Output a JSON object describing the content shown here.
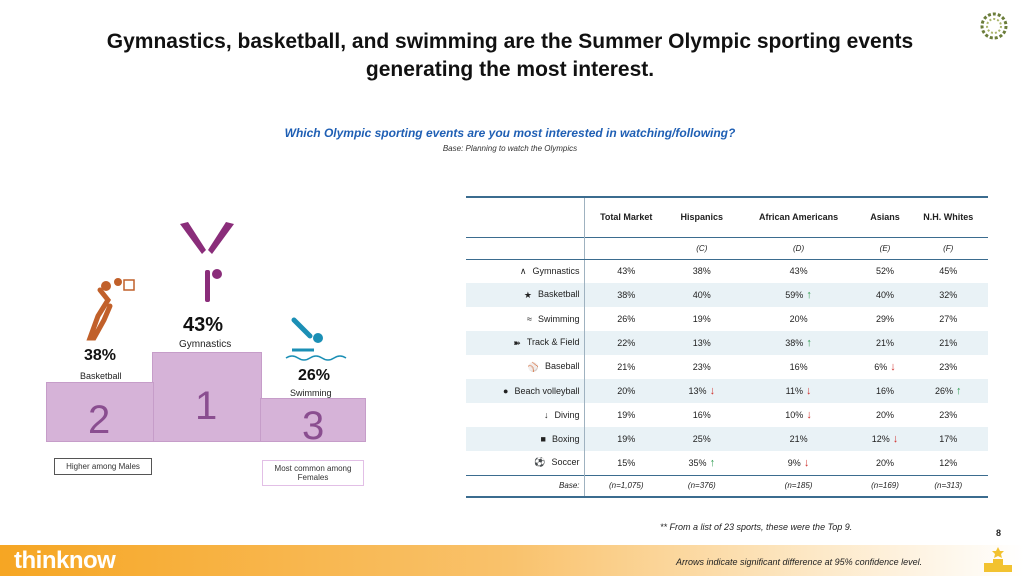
{
  "title": "Gymnastics, basketball, and swimming are the Summer Olympic sporting events generating the most interest.",
  "question": "Which Olympic sporting events are you most interested in watching/following?",
  "base_note": "Base: Planning to watch the Olympics",
  "podium": {
    "first": {
      "place": "1",
      "pct": "43%",
      "label": "Gymnastics"
    },
    "second": {
      "place": "2",
      "pct": "38%",
      "label": "Basketball"
    },
    "third": {
      "place": "3",
      "pct": "26%",
      "label": "Swimming"
    },
    "note_males": "Higher among Males",
    "note_females": "Most common among Females"
  },
  "chart_data": {
    "type": "table",
    "title": "Which Olympic sporting events are you most interested in watching/following?",
    "columns": [
      "Total Market",
      "Hispanics",
      "African Americans",
      "Asians",
      "N.H. Whites"
    ],
    "column_letters": [
      "",
      "(C)",
      "(D)",
      "(E)",
      "(F)"
    ],
    "rows": [
      {
        "sport": "Gymnastics",
        "icon": "gymnastics-icon",
        "values": [
          "43%",
          "38%",
          "43%",
          "52%",
          "45%"
        ],
        "sig": [
          "",
          "",
          "",
          "",
          ""
        ]
      },
      {
        "sport": "Basketball",
        "icon": "basketball-icon",
        "values": [
          "38%",
          "40%",
          "59%",
          "40%",
          "32%"
        ],
        "sig": [
          "",
          "",
          "up",
          "",
          ""
        ]
      },
      {
        "sport": "Swimming",
        "icon": "swimming-icon",
        "values": [
          "26%",
          "19%",
          "20%",
          "29%",
          "27%"
        ],
        "sig": [
          "",
          "",
          "",
          "",
          ""
        ]
      },
      {
        "sport": "Track & Field",
        "icon": "track-field-icon",
        "values": [
          "22%",
          "13%",
          "38%",
          "21%",
          "21%"
        ],
        "sig": [
          "",
          "",
          "up",
          "",
          ""
        ]
      },
      {
        "sport": "Baseball",
        "icon": "baseball-icon",
        "values": [
          "21%",
          "23%",
          "16%",
          "6%",
          "23%"
        ],
        "sig": [
          "",
          "",
          "",
          "down",
          ""
        ]
      },
      {
        "sport": "Beach volleyball",
        "icon": "beach-volleyball-icon",
        "values": [
          "20%",
          "13%",
          "11%",
          "16%",
          "26%"
        ],
        "sig": [
          "",
          "down",
          "down",
          "",
          "up"
        ]
      },
      {
        "sport": "Diving",
        "icon": "diving-icon",
        "values": [
          "19%",
          "16%",
          "10%",
          "20%",
          "23%"
        ],
        "sig": [
          "",
          "",
          "down",
          "",
          ""
        ]
      },
      {
        "sport": "Boxing",
        "icon": "boxing-icon",
        "values": [
          "19%",
          "25%",
          "21%",
          "12%",
          "17%"
        ],
        "sig": [
          "",
          "",
          "",
          "down",
          ""
        ]
      },
      {
        "sport": "Soccer",
        "icon": "soccer-icon",
        "values": [
          "15%",
          "35%",
          "9%",
          "20%",
          "12%"
        ],
        "sig": [
          "",
          "up",
          "down",
          "",
          ""
        ]
      }
    ],
    "base_label": "Base:",
    "base_values": [
      "(n=1,075)",
      "(n=376)",
      "(n=185)",
      "(n=169)",
      "(n=313)"
    ]
  },
  "footnote": "** From a list of 23 sports, these were the Top 9.",
  "arrows_note": "Arrows indicate significant difference at 95% confidence level.",
  "page_number": "8",
  "brand": "thinknow",
  "colors": {
    "accent_blue": "#1f5fb4",
    "podium_fill": "#d6b3d8",
    "podium_text": "#8a4e90",
    "up_arrow": "#2e9b4f",
    "down_arrow": "#d0312d",
    "brand_orange": "#f6a623"
  }
}
